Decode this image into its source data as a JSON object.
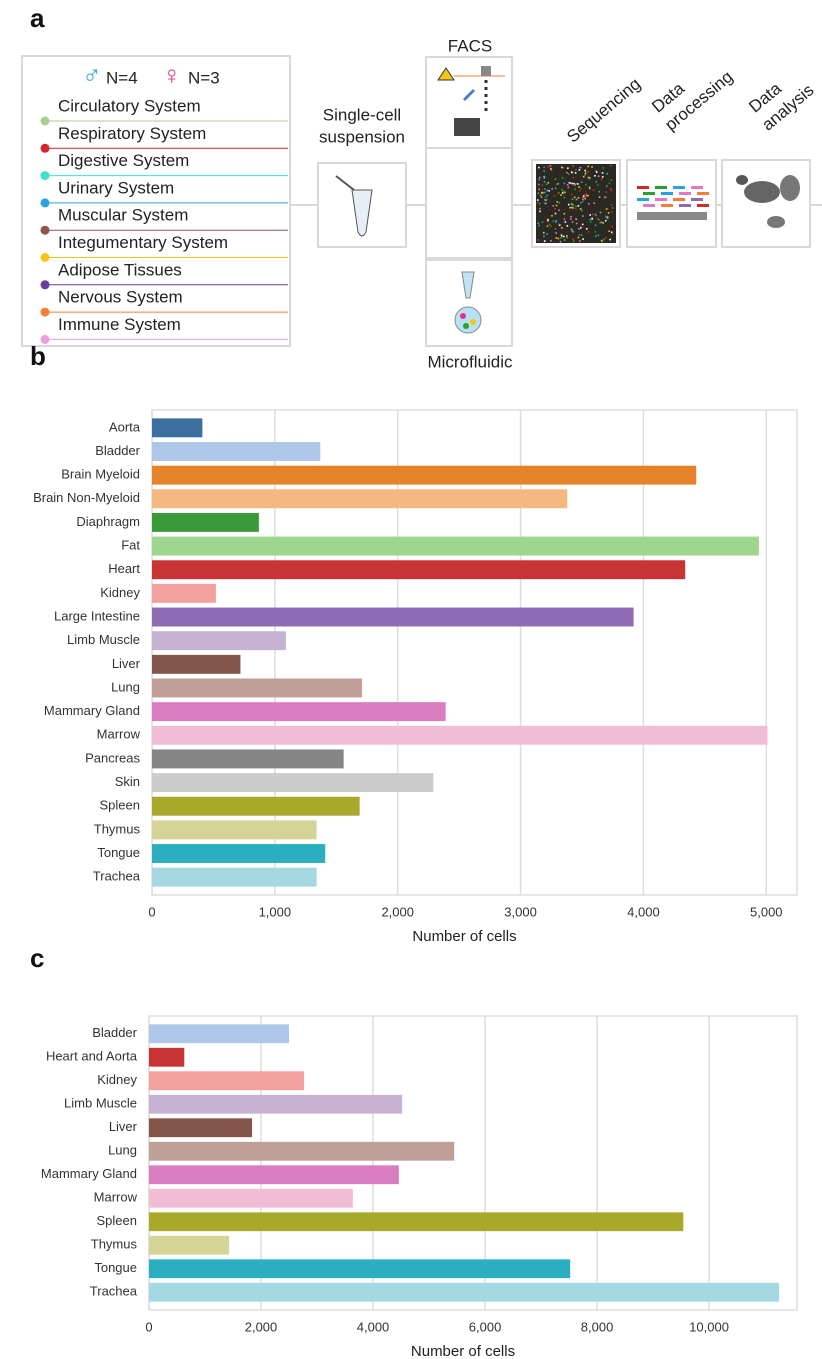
{
  "diagram": {
    "panel_label": "a",
    "male_symbol": "♂",
    "male_count": "N=4",
    "female_symbol": "♀",
    "female_count": "N=3",
    "systems": [
      {
        "name": "Circulatory System",
        "color": "#a8d08d"
      },
      {
        "name": "Respiratory System",
        "color": "#d62728"
      },
      {
        "name": "Digestive System",
        "color": "#40e0d0"
      },
      {
        "name": "Urinary System",
        "color": "#29a3e0"
      },
      {
        "name": "Muscular System",
        "color": "#8c564b"
      },
      {
        "name": "Integumentary System",
        "color": "#f5c518"
      },
      {
        "name": "Adipose Tissues",
        "color": "#6a3d9a"
      },
      {
        "name": "Nervous System",
        "color": "#f07f3c"
      },
      {
        "name": "Immune System",
        "color": "#e8a0e0"
      }
    ],
    "suspension": [
      "Single-cell",
      "suspension"
    ],
    "facs": "FACS",
    "microfluidic": "Microfluidic",
    "sequencing": "Sequencing",
    "processing": [
      "Data",
      "processing"
    ],
    "analysis": [
      "Data",
      "analysis"
    ]
  },
  "chart_data": [
    {
      "type": "barh",
      "panel_label": "b",
      "xlabel": "Number of cells",
      "categories": [
        "Aorta",
        "Bladder",
        "Brain Myeloid",
        "Brain Non-Myeloid",
        "Diaphragm",
        "Fat",
        "Heart",
        "Kidney",
        "Large Intestine",
        "Limb Muscle",
        "Liver",
        "Lung",
        "Mammary Gland",
        "Marrow",
        "Pancreas",
        "Skin",
        "Spleen",
        "Thymus",
        "Tongue",
        "Trachea"
      ],
      "values": [
        410,
        1370,
        4430,
        3380,
        870,
        4940,
        4340,
        520,
        3920,
        1090,
        720,
        1710,
        2390,
        5010,
        1560,
        2290,
        1690,
        1340,
        1410,
        1340
      ],
      "colors": [
        "#3a6fa0",
        "#aec7e8",
        "#e6832a",
        "#f5b880",
        "#3a9a3a",
        "#9dd68e",
        "#c83434",
        "#f4a09e",
        "#8e6bb5",
        "#c6b3d4",
        "#84554a",
        "#c09f97",
        "#d97cc0",
        "#f1bcd6",
        "#858585",
        "#cccccc",
        "#a8a82a",
        "#d5d496",
        "#2aaec0",
        "#a5d8e2"
      ],
      "xlim": [
        0,
        5250
      ],
      "xticks": [
        0,
        {
          "value": 1000,
          "label": "1,000"
        },
        {
          "value": 2000,
          "label": "2,000"
        },
        {
          "value": 3000,
          "label": "3,000"
        },
        {
          "value": 4000,
          "label": "4,000"
        },
        {
          "value": 5000,
          "label": "5,000"
        }
      ],
      "grid": true
    },
    {
      "type": "barh",
      "panel_label": "c",
      "xlabel": "Number of cells",
      "categories": [
        "Bladder",
        "Heart and Aorta",
        "Kidney",
        "Limb Muscle",
        "Liver",
        "Lung",
        "Mammary Gland",
        "Marrow",
        "Spleen",
        "Thymus",
        "Tongue",
        "Trachea"
      ],
      "values": [
        2500,
        630,
        2770,
        4520,
        1840,
        5450,
        4460,
        3640,
        9540,
        1430,
        7520,
        11250
      ],
      "colors": [
        "#aec7e8",
        "#c83434",
        "#f4a09e",
        "#c6b3d4",
        "#84554a",
        "#c09f97",
        "#d97cc0",
        "#f1bcd6",
        "#a8a82a",
        "#d5d496",
        "#2aaec0",
        "#a5d8e2"
      ],
      "xlim": [
        0,
        11570
      ],
      "xticks": [
        0,
        {
          "value": 2000,
          "label": "2,000"
        },
        {
          "value": 4000,
          "label": "4,000"
        },
        {
          "value": 6000,
          "label": "6,000"
        },
        {
          "value": 8000,
          "label": "8,000"
        },
        {
          "value": 10000,
          "label": "10,000"
        }
      ],
      "grid": true
    }
  ]
}
